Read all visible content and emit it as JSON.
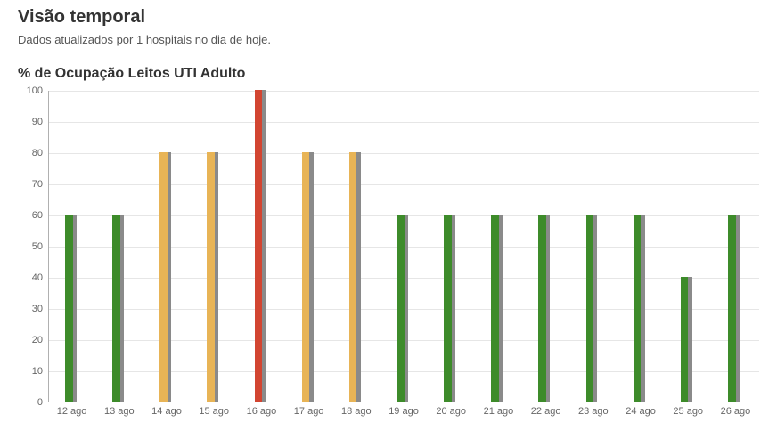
{
  "header": {
    "title": "Visão temporal",
    "subtitle": "Dados atualizados por 1 hospitais no dia de hoje."
  },
  "chart": {
    "type": "bar",
    "title": "% de Ocupação Leitos UTI Adulto",
    "ylabel_min": 0,
    "ylabel_max": 100,
    "ytick_step": 10,
    "yticks": [
      0,
      10,
      20,
      30,
      40,
      50,
      60,
      70,
      80,
      90,
      100
    ],
    "grid_color": "#e6e6e6",
    "axis_color": "#b0b0b0",
    "background_color": "#ffffff",
    "label_fontsize": 11,
    "label_color": "#666666",
    "title_fontsize": 16,
    "title_color": "#333333",
    "shadow_bar_color": "#8a8a8a",
    "categories": [
      "12 ago",
      "13 ago",
      "14 ago",
      "15 ago",
      "16 ago",
      "17 ago",
      "18 ago",
      "19 ago",
      "20 ago",
      "21 ago",
      "22 ago",
      "23 ago",
      "24 ago",
      "25 ago",
      "26 ago"
    ],
    "series": [
      {
        "primary_value": 60,
        "shadow_value": 60,
        "primary_color": "#3d8b2a"
      },
      {
        "primary_value": 60,
        "shadow_value": 60,
        "primary_color": "#3d8b2a"
      },
      {
        "primary_value": 80,
        "shadow_value": 80,
        "primary_color": "#e8b456"
      },
      {
        "primary_value": 80,
        "shadow_value": 80,
        "primary_color": "#e8b456"
      },
      {
        "primary_value": 100,
        "shadow_value": 100,
        "primary_color": "#d24531"
      },
      {
        "primary_value": 80,
        "shadow_value": 80,
        "primary_color": "#e8b456"
      },
      {
        "primary_value": 80,
        "shadow_value": 80,
        "primary_color": "#e8b456"
      },
      {
        "primary_value": 60,
        "shadow_value": 60,
        "primary_color": "#3d8b2a"
      },
      {
        "primary_value": 60,
        "shadow_value": 60,
        "primary_color": "#3d8b2a"
      },
      {
        "primary_value": 60,
        "shadow_value": 60,
        "primary_color": "#3d8b2a"
      },
      {
        "primary_value": 60,
        "shadow_value": 60,
        "primary_color": "#3d8b2a"
      },
      {
        "primary_value": 60,
        "shadow_value": 60,
        "primary_color": "#3d8b2a"
      },
      {
        "primary_value": 60,
        "shadow_value": 60,
        "primary_color": "#3d8b2a"
      },
      {
        "primary_value": 40,
        "shadow_value": 40,
        "primary_color": "#3d8b2a"
      },
      {
        "primary_value": 60,
        "shadow_value": 60,
        "primary_color": "#3d8b2a"
      }
    ]
  }
}
